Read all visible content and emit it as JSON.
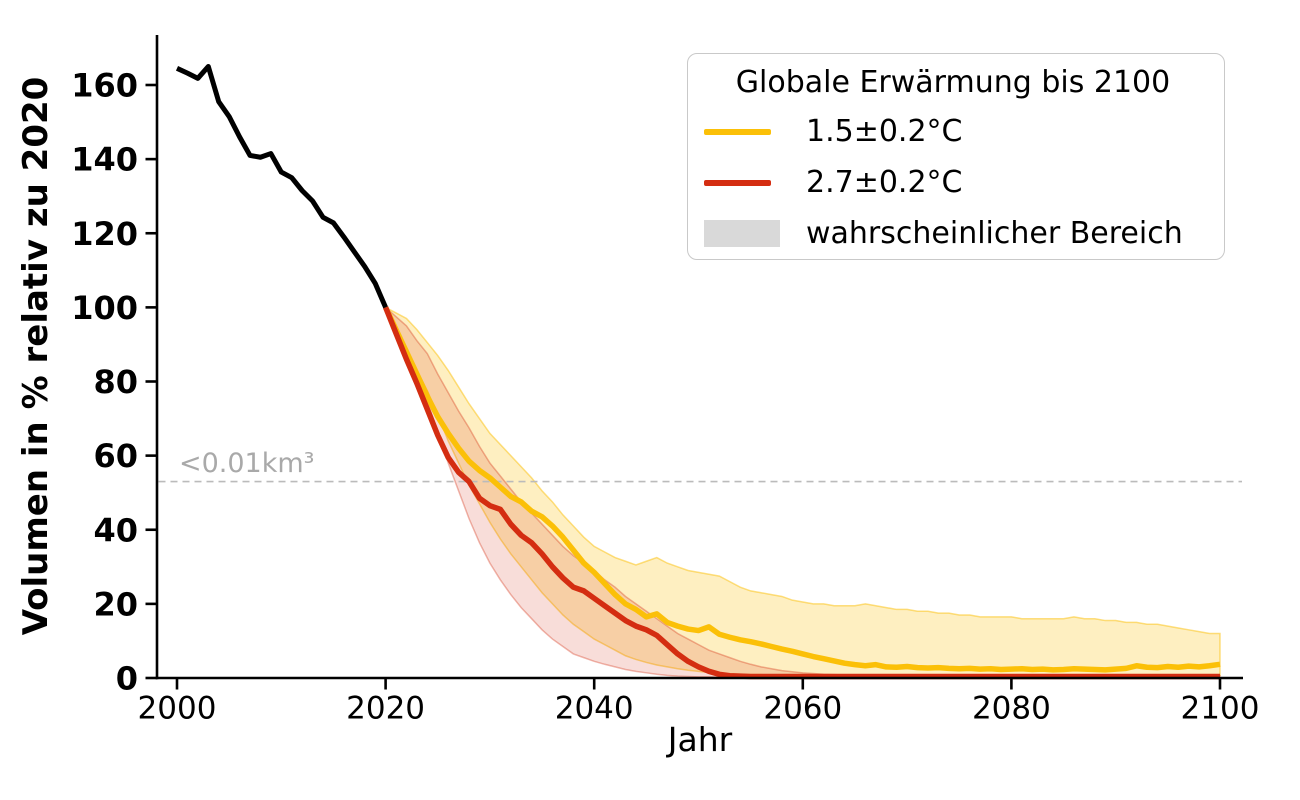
{
  "figure": {
    "xlabel": "Jahr",
    "ylabel": "Volumen in % relativ zu 2020",
    "threshold_label": "<0.01km³",
    "legend": {
      "title": "Globale Erwärmung bis 2100",
      "items": [
        {
          "label": "1.5±0.2°C",
          "swatch": "line",
          "color": "#FBC008"
        },
        {
          "label": "2.7±0.2°C",
          "swatch": "line",
          "color": "#D42D11"
        },
        {
          "label": "wahrscheinlicher Bereich",
          "swatch": "patch",
          "color": "#D9D9D9"
        }
      ]
    }
  },
  "chart_data": {
    "type": "line",
    "title": "",
    "xlabel": "Jahr",
    "ylabel": "Volumen in % relativ zu 2020",
    "xlim": [
      1998,
      2102
    ],
    "ylim": [
      0,
      172
    ],
    "xticks": [
      2000,
      2020,
      2040,
      2060,
      2080,
      2100
    ],
    "yticks": [
      0,
      20,
      40,
      60,
      80,
      100,
      120,
      140,
      160
    ],
    "grid": false,
    "legend_position": "upper right",
    "legend_title": "Globale Erwärmung bis 2100",
    "threshold_line": {
      "value": 53,
      "label": "<0.01km³",
      "style": "dashed",
      "color": "#BBBBBB",
      "text_color": "#A9A9A9"
    },
    "series": [
      {
        "id": "history",
        "label": "",
        "color": "#000000",
        "linewidth": 5,
        "x": [
          2000,
          2001,
          2002,
          2003,
          2004,
          2005,
          2006,
          2007,
          2008,
          2009,
          2010,
          2011,
          2012,
          2013,
          2014,
          2015,
          2016,
          2017,
          2018,
          2019,
          2020
        ],
        "y": [
          164.5,
          163.2,
          161.8,
          165.0,
          155.5,
          151.5,
          146.0,
          141.0,
          140.5,
          141.5,
          136.5,
          135.0,
          131.5,
          128.7,
          124.3,
          122.8,
          119.0,
          115.0,
          111.0,
          106.5,
          100.0
        ]
      },
      {
        "id": "scenario_1_5",
        "label": "1.5±0.2°C",
        "color": "#FBC008",
        "band_color": "rgba(251,192,8,0.25)",
        "band_edge": "rgba(251,192,8,0.5)",
        "linewidth": 5.5,
        "x": [
          2020,
          2021,
          2022,
          2023,
          2024,
          2025,
          2026,
          2027,
          2028,
          2029,
          2030,
          2031,
          2032,
          2033,
          2034,
          2035,
          2036,
          2037,
          2038,
          2039,
          2040,
          2041,
          2042,
          2043,
          2044,
          2045,
          2046,
          2047,
          2048,
          2049,
          2050,
          2051,
          2052,
          2053,
          2054,
          2055,
          2056,
          2057,
          2058,
          2059,
          2060,
          2061,
          2062,
          2063,
          2064,
          2065,
          2066,
          2067,
          2068,
          2069,
          2070,
          2071,
          2072,
          2073,
          2074,
          2075,
          2076,
          2077,
          2078,
          2079,
          2080,
          2081,
          2082,
          2083,
          2084,
          2085,
          2086,
          2087,
          2088,
          2089,
          2090,
          2091,
          2092,
          2093,
          2094,
          2095,
          2096,
          2097,
          2098,
          2099,
          2100
        ],
        "y": [
          100.0,
          94.0,
          88.0,
          82.0,
          76.0,
          70.5,
          66.0,
          62.0,
          58.5,
          56.0,
          54.0,
          51.5,
          49.0,
          47.5,
          45.0,
          43.5,
          41.0,
          38.0,
          34.5,
          31.0,
          28.5,
          25.5,
          22.5,
          20.0,
          18.5,
          16.5,
          17.3,
          15.0,
          14.0,
          13.2,
          12.8,
          13.8,
          11.8,
          11.0,
          10.3,
          9.8,
          9.2,
          8.5,
          7.8,
          7.2,
          6.5,
          5.8,
          5.2,
          4.6,
          4.0,
          3.6,
          3.3,
          3.6,
          3.0,
          2.9,
          3.1,
          2.8,
          2.7,
          2.8,
          2.6,
          2.5,
          2.6,
          2.4,
          2.5,
          2.3,
          2.4,
          2.5,
          2.3,
          2.4,
          2.2,
          2.3,
          2.5,
          2.4,
          2.3,
          2.2,
          2.4,
          2.6,
          3.3,
          2.9,
          2.8,
          3.1,
          2.9,
          3.2,
          3.0,
          3.3,
          3.7
        ],
        "band_upper": [
          100.0,
          98.5,
          97.0,
          94.0,
          90.5,
          87.0,
          83.0,
          78.5,
          74.0,
          70.0,
          66.0,
          63.0,
          60.0,
          57.0,
          54.0,
          50.5,
          47.5,
          44.0,
          41.0,
          38.0,
          35.5,
          34.0,
          32.5,
          31.5,
          30.5,
          31.5,
          32.5,
          31.0,
          30.0,
          29.0,
          28.5,
          28.0,
          27.5,
          26.0,
          24.5,
          23.5,
          23.0,
          22.5,
          22.0,
          21.0,
          20.5,
          20.0,
          20.0,
          19.5,
          19.5,
          19.5,
          20.0,
          19.5,
          19.0,
          18.5,
          18.5,
          18.0,
          18.0,
          17.5,
          17.5,
          17.0,
          17.0,
          16.5,
          16.5,
          16.5,
          16.5,
          16.0,
          16.0,
          16.0,
          16.0,
          16.0,
          16.5,
          16.0,
          16.0,
          15.5,
          15.5,
          15.0,
          15.0,
          14.5,
          14.5,
          14.0,
          13.5,
          13.0,
          12.5,
          12.0,
          12.0
        ],
        "band_lower": [
          100.0,
          94.5,
          89.0,
          83.0,
          77.5,
          71.0,
          64.0,
          58.0,
          52.0,
          47.0,
          42.0,
          37.5,
          33.5,
          30.0,
          26.5,
          23.0,
          20.0,
          17.0,
          14.5,
          12.5,
          10.5,
          9.0,
          7.5,
          6.0,
          5.0,
          4.2,
          3.5,
          3.0,
          2.5,
          2.1,
          1.8,
          1.5,
          1.3,
          1.1,
          1.0,
          0.9,
          0.9,
          0.8,
          0.8,
          0.8,
          0.8,
          0.8,
          0.7,
          0.7,
          0.7,
          0.7,
          0.7,
          0.7,
          0.7,
          0.7,
          0.7,
          0.7,
          0.7,
          0.7,
          0.7,
          0.7,
          0.7,
          0.7,
          0.7,
          0.7,
          0.7,
          0.7,
          0.7,
          0.7,
          0.7,
          0.7,
          0.7,
          0.7,
          0.7,
          0.7,
          0.7,
          0.7,
          0.7,
          0.7,
          0.7,
          0.7,
          0.7,
          0.7,
          0.7,
          0.7,
          0.7
        ]
      },
      {
        "id": "scenario_2_7",
        "label": "2.7±0.2°C",
        "color": "#D42D11",
        "band_color": "rgba(212,45,17,0.16)",
        "band_edge": "rgba(212,45,17,0.35)",
        "linewidth": 5.5,
        "x": [
          2020,
          2021,
          2022,
          2023,
          2024,
          2025,
          2026,
          2027,
          2028,
          2029,
          2030,
          2031,
          2032,
          2033,
          2034,
          2035,
          2036,
          2037,
          2038,
          2039,
          2040,
          2041,
          2042,
          2043,
          2044,
          2045,
          2046,
          2047,
          2048,
          2049,
          2050,
          2051,
          2052,
          2053,
          2054,
          2055,
          2056,
          2057,
          2058,
          2059,
          2060,
          2061,
          2062,
          2063,
          2064,
          2065,
          2066,
          2067,
          2068,
          2069,
          2070,
          2071,
          2072,
          2073,
          2074,
          2075,
          2076,
          2077,
          2078,
          2079,
          2080,
          2081,
          2082,
          2083,
          2084,
          2085,
          2086,
          2087,
          2088,
          2089,
          2090,
          2091,
          2092,
          2093,
          2094,
          2095,
          2096,
          2097,
          2098,
          2099,
          2100
        ],
        "y": [
          100.0,
          93.0,
          86.0,
          79.5,
          72.5,
          65.5,
          59.5,
          55.5,
          53.0,
          48.5,
          46.5,
          45.5,
          41.5,
          38.5,
          36.5,
          33.5,
          30.0,
          27.0,
          24.5,
          23.5,
          21.5,
          19.5,
          17.5,
          15.5,
          14.0,
          13.0,
          11.5,
          9.0,
          6.5,
          4.5,
          3.0,
          1.8,
          1.0,
          0.6,
          0.5,
          0.4,
          0.4,
          0.4,
          0.4,
          0.4,
          0.4,
          0.4,
          0.4,
          0.4,
          0.4,
          0.4,
          0.4,
          0.4,
          0.4,
          0.4,
          0.4,
          0.4,
          0.4,
          0.4,
          0.4,
          0.4,
          0.4,
          0.4,
          0.4,
          0.4,
          0.4,
          0.4,
          0.4,
          0.4,
          0.4,
          0.4,
          0.4,
          0.4,
          0.4,
          0.4,
          0.4,
          0.4,
          0.4,
          0.4,
          0.4,
          0.4,
          0.4,
          0.4,
          0.4,
          0.4,
          0.4
        ],
        "band_upper": [
          100.0,
          97.5,
          95.0,
          91.0,
          87.5,
          82.0,
          77.0,
          72.0,
          67.5,
          62.5,
          58.0,
          54.5,
          51.0,
          47.5,
          44.5,
          41.5,
          38.5,
          35.5,
          33.0,
          31.0,
          29.0,
          26.5,
          24.5,
          22.0,
          20.0,
          18.0,
          16.0,
          14.0,
          12.0,
          10.5,
          9.0,
          7.5,
          6.5,
          5.5,
          4.5,
          3.7,
          3.0,
          2.5,
          2.0,
          1.7,
          1.4,
          1.2,
          1.0,
          0.9,
          0.8,
          0.7,
          0.7,
          0.6,
          0.6,
          0.6,
          0.6,
          0.6,
          0.6,
          0.6,
          0.6,
          0.6,
          0.6,
          0.6,
          0.6,
          0.6,
          0.6,
          0.6,
          0.6,
          0.6,
          0.6,
          0.6,
          0.6,
          0.6,
          0.6,
          0.6,
          0.6,
          0.6,
          0.6,
          0.6,
          0.6,
          0.6,
          0.6,
          0.6,
          0.6,
          0.6,
          0.6
        ],
        "band_lower": [
          100.0,
          94.5,
          88.5,
          81.5,
          74.5,
          66.5,
          58.0,
          50.5,
          43.0,
          36.5,
          31.0,
          26.5,
          22.5,
          19.0,
          16.0,
          13.0,
          10.5,
          8.5,
          6.5,
          5.5,
          4.5,
          3.7,
          3.0,
          2.3,
          1.8,
          1.4,
          1.0,
          0.7,
          0.5,
          0.4,
          0.3,
          0.3,
          0.2,
          0.2,
          0.2,
          0.2,
          0.2,
          0.2,
          0.2,
          0.2,
          0.2,
          0.2,
          0.2,
          0.2,
          0.2,
          0.2,
          0.2,
          0.2,
          0.2,
          0.2,
          0.2,
          0.2,
          0.2,
          0.2,
          0.2,
          0.2,
          0.2,
          0.2,
          0.2,
          0.2,
          0.2,
          0.2,
          0.2,
          0.2,
          0.2,
          0.2,
          0.2,
          0.2,
          0.2,
          0.2,
          0.2,
          0.2,
          0.2,
          0.2,
          0.2,
          0.2,
          0.2,
          0.2,
          0.2,
          0.2,
          0.2
        ]
      }
    ]
  }
}
